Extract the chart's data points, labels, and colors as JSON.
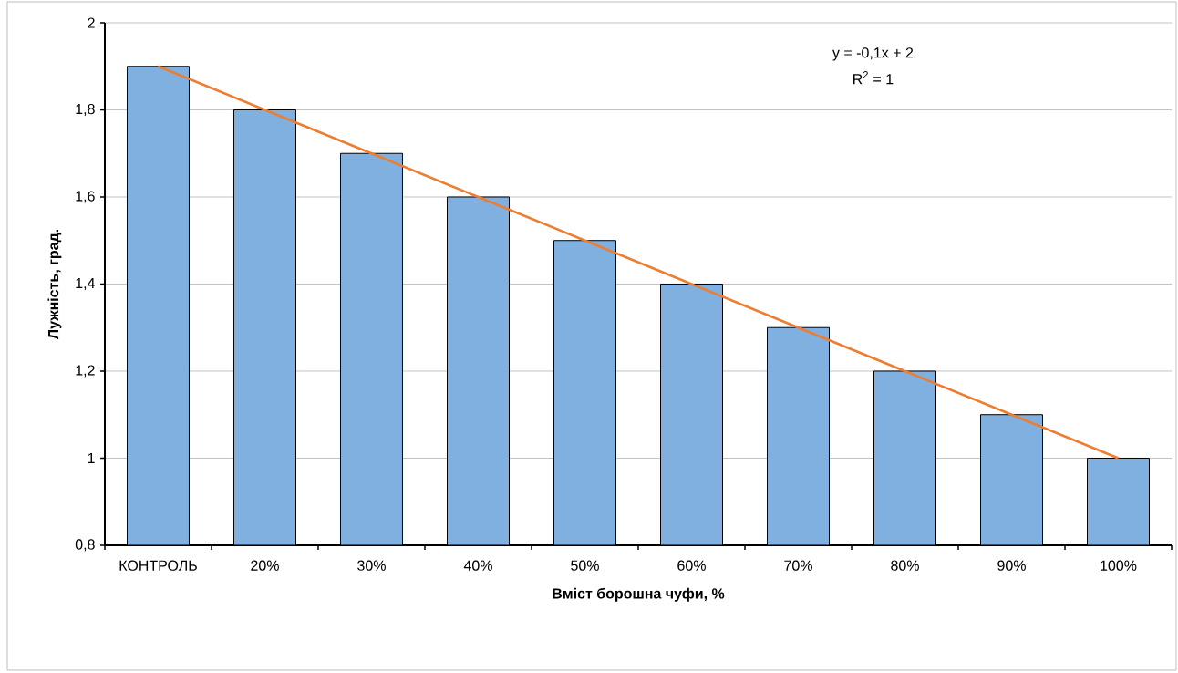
{
  "chart_data": {
    "type": "bar",
    "xlabel": "Вміст  борошна чуфи, %",
    "ylabel": "Лужність, град.",
    "categories": [
      "КОНТРОЛЬ",
      "20%",
      "30%",
      "40%",
      "50%",
      "60%",
      "70%",
      "80%",
      "90%",
      "100%"
    ],
    "series": [
      {
        "type": "bar",
        "color": "#7fb0df",
        "values": [
          1.9,
          1.8,
          1.7,
          1.6,
          1.5,
          1.4,
          1.3,
          1.2,
          1.1,
          1.0
        ]
      },
      {
        "type": "line",
        "color": "#ed7d31",
        "values": [
          1.9,
          1.8,
          1.7,
          1.6,
          1.5,
          1.4,
          1.3,
          1.2,
          1.1,
          1.0
        ]
      }
    ],
    "ylim": [
      0.8,
      2
    ],
    "yticks": [
      {
        "value": 0.8,
        "label": "0,8"
      },
      {
        "value": 1,
        "label": "1"
      },
      {
        "value": 1.2,
        "label": "1,2"
      },
      {
        "value": 1.4,
        "label": "1,4"
      },
      {
        "value": 1.6,
        "label": "1,6"
      },
      {
        "value": 1.8,
        "label": "1,8"
      },
      {
        "value": 2,
        "label": "2"
      }
    ],
    "grid": "y",
    "annotations": [
      "y = -0,1x + 2",
      "R$^{2}$ = 1"
    ]
  }
}
